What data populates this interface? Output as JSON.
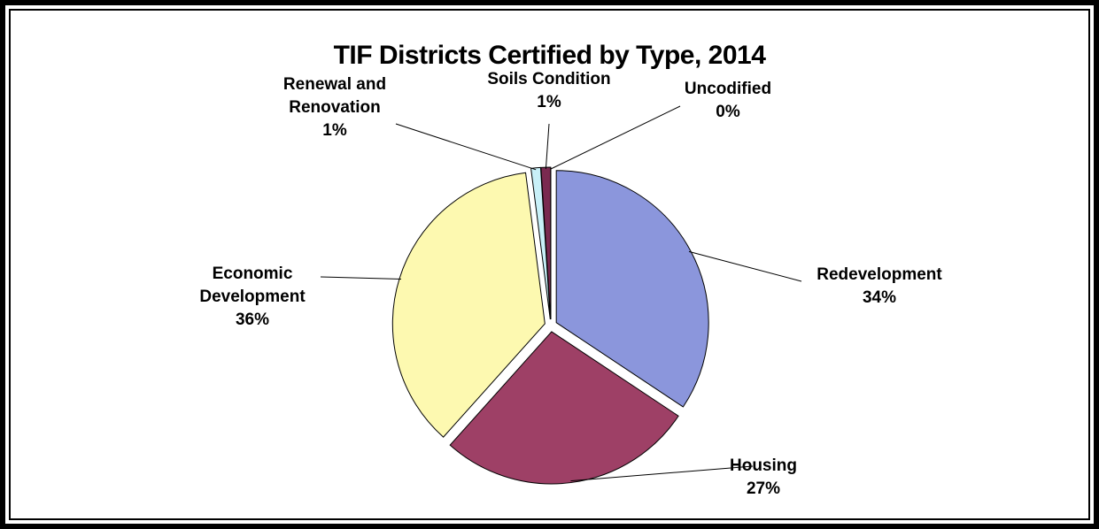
{
  "chart_data": {
    "type": "pie",
    "title": "TIF Districts Certified by Type, 2014",
    "categories": [
      "Redevelopment",
      "Housing",
      "Economic Development",
      "Renewal and Renovation",
      "Soils Condition",
      "Uncodified"
    ],
    "values": [
      34,
      27,
      36,
      1,
      1,
      0
    ],
    "value_labels": [
      "34%",
      "27%",
      "36%",
      "1%",
      "1%",
      "0%"
    ],
    "colors": [
      "#8b96dc",
      "#9e4066",
      "#fdf9b0",
      "#c8f0f8",
      "#7a2a50",
      "#5a6ab8"
    ]
  }
}
